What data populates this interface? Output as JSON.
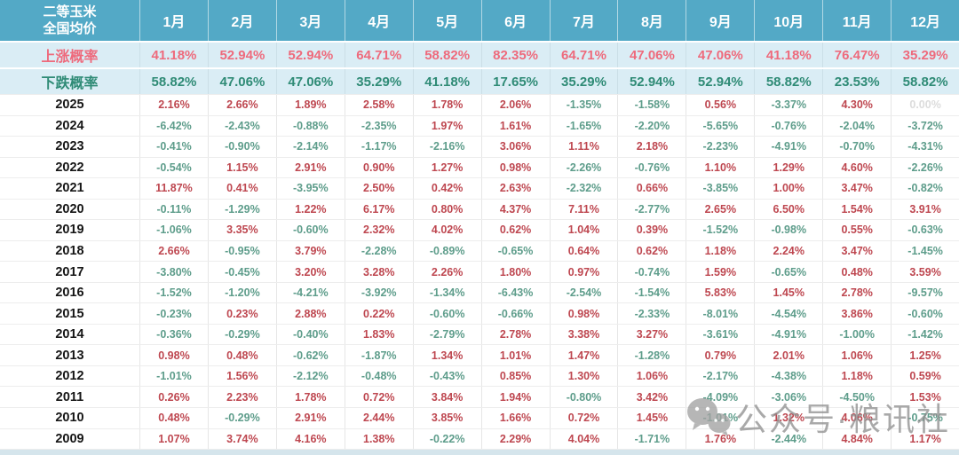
{
  "chart_data": {
    "type": "table",
    "title": "二等玉米 全国均价",
    "title_line1": "二等玉米",
    "title_line2": "全国均价",
    "unit": "%",
    "columns": [
      "1月",
      "2月",
      "3月",
      "4月",
      "5月",
      "6月",
      "7月",
      "8月",
      "9月",
      "10月",
      "11月",
      "12月"
    ],
    "probability_rows": [
      {
        "label": "上涨概率",
        "key": "rise",
        "values": [
          41.18,
          52.94,
          52.94,
          64.71,
          58.82,
          82.35,
          64.71,
          47.06,
          47.06,
          41.18,
          76.47,
          35.29
        ]
      },
      {
        "label": "下跌概率",
        "key": "fall",
        "values": [
          58.82,
          47.06,
          47.06,
          35.29,
          41.18,
          17.65,
          35.29,
          52.94,
          52.94,
          58.82,
          23.53,
          58.82
        ]
      }
    ],
    "year_rows": [
      {
        "year": "2025",
        "values": [
          2.16,
          2.66,
          1.89,
          2.58,
          1.78,
          2.06,
          -1.35,
          -1.58,
          0.56,
          -3.37,
          4.3,
          0.0
        ]
      },
      {
        "year": "2024",
        "values": [
          -6.42,
          -2.43,
          -0.88,
          -2.35,
          1.97,
          1.61,
          -1.65,
          -2.2,
          -5.65,
          -0.76,
          -2.04,
          -3.72
        ]
      },
      {
        "year": "2023",
        "values": [
          -0.41,
          -0.9,
          -2.14,
          -1.17,
          -2.16,
          3.06,
          1.11,
          2.18,
          -2.23,
          -4.91,
          -0.7,
          -4.31
        ]
      },
      {
        "year": "2022",
        "values": [
          -0.54,
          1.15,
          2.91,
          0.9,
          1.27,
          0.98,
          -2.26,
          -0.76,
          1.1,
          1.29,
          4.6,
          -2.26
        ]
      },
      {
        "year": "2021",
        "values": [
          11.87,
          0.41,
          -3.95,
          2.5,
          0.42,
          2.63,
          -2.32,
          0.66,
          -3.85,
          1.0,
          3.47,
          -0.82
        ]
      },
      {
        "year": "2020",
        "values": [
          -0.11,
          -1.29,
          1.22,
          6.17,
          0.8,
          4.37,
          7.11,
          -2.77,
          2.65,
          6.5,
          1.54,
          3.91
        ]
      },
      {
        "year": "2019",
        "values": [
          -1.06,
          3.35,
          -0.6,
          2.32,
          4.02,
          0.62,
          1.04,
          0.39,
          -1.52,
          -0.98,
          0.55,
          -0.63
        ]
      },
      {
        "year": "2018",
        "values": [
          2.66,
          -0.95,
          3.79,
          -2.28,
          -0.89,
          -0.65,
          0.64,
          0.62,
          1.18,
          2.24,
          3.47,
          -1.45
        ]
      },
      {
        "year": "2017",
        "values": [
          -3.8,
          -0.45,
          3.2,
          3.28,
          2.26,
          1.8,
          0.97,
          -0.74,
          1.59,
          -0.65,
          0.48,
          3.59
        ]
      },
      {
        "year": "2016",
        "values": [
          -1.52,
          -1.2,
          -4.21,
          -3.92,
          -1.34,
          -6.43,
          -2.54,
          -1.54,
          5.83,
          1.45,
          2.78,
          -9.57
        ]
      },
      {
        "year": "2015",
        "values": [
          -0.23,
          0.23,
          2.88,
          0.22,
          -0.6,
          -0.66,
          0.98,
          -2.33,
          -8.01,
          -4.54,
          3.86,
          -0.6
        ]
      },
      {
        "year": "2014",
        "values": [
          -0.36,
          -0.29,
          -0.4,
          1.83,
          -2.79,
          2.78,
          3.38,
          3.27,
          -3.61,
          -4.91,
          -1.0,
          -1.42
        ]
      },
      {
        "year": "2013",
        "values": [
          0.98,
          0.48,
          -0.62,
          -1.87,
          1.34,
          1.01,
          1.47,
          -1.28,
          0.79,
          2.01,
          1.06,
          1.25
        ]
      },
      {
        "year": "2012",
        "values": [
          -1.01,
          1.56,
          -2.12,
          -0.48,
          -0.43,
          0.85,
          1.3,
          1.06,
          -2.17,
          -4.38,
          1.18,
          0.59
        ]
      },
      {
        "year": "2011",
        "values": [
          0.26,
          2.23,
          1.78,
          0.72,
          3.84,
          1.94,
          -0.8,
          3.42,
          -4.09,
          -3.06,
          -4.5,
          1.53
        ]
      },
      {
        "year": "2010",
        "values": [
          0.48,
          -0.29,
          2.91,
          2.44,
          3.85,
          1.66,
          0.72,
          1.45,
          -1.01,
          1.32,
          4.06,
          -0.75
        ]
      },
      {
        "year": "2009",
        "values": [
          1.07,
          3.74,
          4.16,
          1.38,
          -0.22,
          2.29,
          4.04,
          -1.71,
          1.76,
          -2.44,
          4.84,
          1.17
        ]
      }
    ]
  },
  "watermark": {
    "icon": "wechat-icon",
    "text": "公众号·粮讯社"
  },
  "colors": {
    "header_bg": "#53a9c6",
    "probability_row_bg": "#daedf5",
    "rise_text": "#ee6a7c",
    "fall_text": "#2f8b76",
    "positive_value": "#be4750",
    "negative_value": "#5e9d8b",
    "zero_value_muted": "#dcdcdc",
    "year_text": "#151515",
    "watermark_gray": "#8c8c8c",
    "bottom_strip": "#d5e5ec"
  }
}
